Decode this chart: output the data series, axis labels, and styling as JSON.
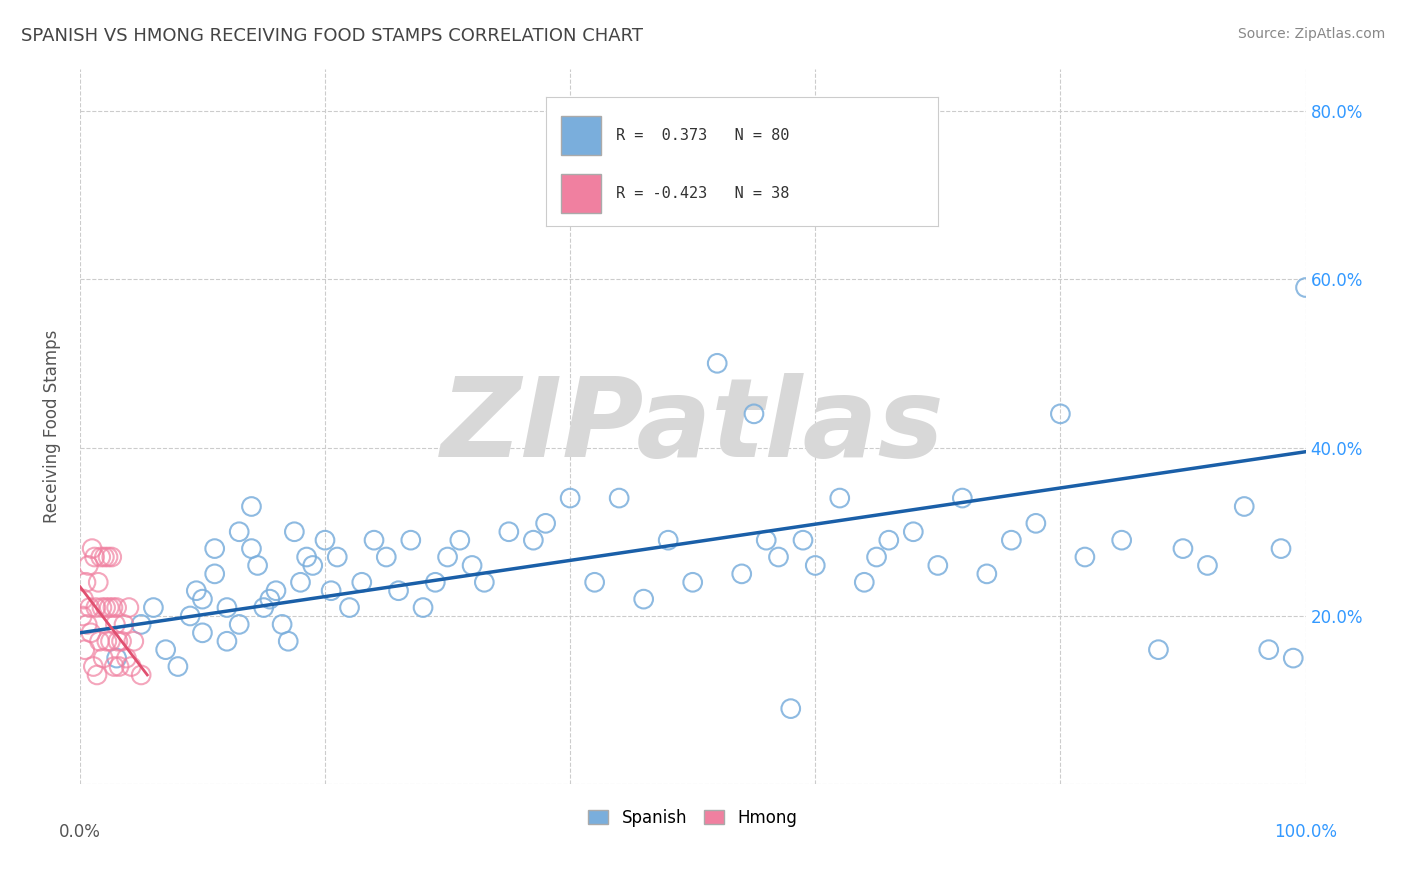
{
  "title": "SPANISH VS HMONG RECEIVING FOOD STAMPS CORRELATION CHART",
  "source": "Source: ZipAtlas.com",
  "ylabel": "Receiving Food Stamps",
  "legend_spanish": "Spanish",
  "legend_hmong": "Hmong",
  "R_spanish": 0.373,
  "N_spanish": 80,
  "R_hmong": -0.423,
  "N_hmong": 38,
  "xlim": [
    0.0,
    1.0
  ],
  "ylim": [
    0.0,
    0.85
  ],
  "xtick_values": [
    0.0,
    0.2,
    0.4,
    0.6,
    0.8,
    1.0
  ],
  "ytick_values": [
    0.0,
    0.2,
    0.4,
    0.6,
    0.8
  ],
  "right_ytick_labels": [
    "80.0%",
    "60.0%",
    "40.0%",
    "20.0%"
  ],
  "right_ytick_values": [
    0.8,
    0.6,
    0.4,
    0.2
  ],
  "color_spanish_fill": "none",
  "color_spanish_edge": "#7aaedc",
  "color_hmong_fill": "none",
  "color_hmong_edge": "#f080a0",
  "trendline_spanish_color": "#1a5fa8",
  "trendline_hmong_color": "#e05070",
  "background_color": "#ffffff",
  "grid_color": "#cccccc",
  "title_color": "#444444",
  "watermark": "ZIPatlas",
  "watermark_color_zip": "#cccccc",
  "watermark_color_atlas": "#aaaaaa",
  "right_axis_color": "#3399ff",
  "spanish_x": [
    0.03,
    0.05,
    0.06,
    0.07,
    0.08,
    0.09,
    0.095,
    0.1,
    0.1,
    0.11,
    0.11,
    0.12,
    0.12,
    0.13,
    0.13,
    0.14,
    0.14,
    0.145,
    0.15,
    0.155,
    0.16,
    0.165,
    0.17,
    0.175,
    0.18,
    0.185,
    0.19,
    0.2,
    0.205,
    0.21,
    0.22,
    0.23,
    0.24,
    0.25,
    0.26,
    0.27,
    0.28,
    0.29,
    0.3,
    0.31,
    0.32,
    0.33,
    0.35,
    0.37,
    0.38,
    0.4,
    0.42,
    0.44,
    0.46,
    0.48,
    0.5,
    0.52,
    0.54,
    0.55,
    0.56,
    0.57,
    0.58,
    0.59,
    0.6,
    0.62,
    0.64,
    0.65,
    0.66,
    0.68,
    0.7,
    0.72,
    0.74,
    0.76,
    0.78,
    0.8,
    0.82,
    0.85,
    0.88,
    0.9,
    0.92,
    0.95,
    0.97,
    0.98,
    0.99,
    1.0
  ],
  "spanish_y": [
    0.15,
    0.19,
    0.21,
    0.16,
    0.14,
    0.2,
    0.23,
    0.22,
    0.18,
    0.25,
    0.28,
    0.17,
    0.21,
    0.3,
    0.19,
    0.28,
    0.33,
    0.26,
    0.21,
    0.22,
    0.23,
    0.19,
    0.17,
    0.3,
    0.24,
    0.27,
    0.26,
    0.29,
    0.23,
    0.27,
    0.21,
    0.24,
    0.29,
    0.27,
    0.23,
    0.29,
    0.21,
    0.24,
    0.27,
    0.29,
    0.26,
    0.24,
    0.3,
    0.29,
    0.31,
    0.34,
    0.24,
    0.34,
    0.22,
    0.29,
    0.24,
    0.5,
    0.25,
    0.44,
    0.29,
    0.27,
    0.09,
    0.29,
    0.26,
    0.34,
    0.24,
    0.27,
    0.29,
    0.3,
    0.26,
    0.34,
    0.25,
    0.29,
    0.31,
    0.44,
    0.27,
    0.29,
    0.16,
    0.28,
    0.26,
    0.33,
    0.16,
    0.28,
    0.15,
    0.59
  ],
  "hmong_x": [
    0.002,
    0.003,
    0.004,
    0.005,
    0.006,
    0.007,
    0.008,
    0.009,
    0.01,
    0.011,
    0.012,
    0.013,
    0.014,
    0.015,
    0.016,
    0.017,
    0.018,
    0.019,
    0.02,
    0.021,
    0.022,
    0.023,
    0.024,
    0.025,
    0.026,
    0.027,
    0.028,
    0.029,
    0.03,
    0.031,
    0.032,
    0.034,
    0.036,
    0.038,
    0.04,
    0.042,
    0.044,
    0.05
  ],
  "hmong_y": [
    0.2,
    0.22,
    0.16,
    0.24,
    0.19,
    0.26,
    0.21,
    0.18,
    0.28,
    0.14,
    0.27,
    0.21,
    0.13,
    0.24,
    0.17,
    0.27,
    0.21,
    0.15,
    0.27,
    0.21,
    0.17,
    0.27,
    0.21,
    0.17,
    0.27,
    0.21,
    0.14,
    0.19,
    0.21,
    0.17,
    0.14,
    0.17,
    0.19,
    0.15,
    0.21,
    0.14,
    0.17,
    0.13
  ],
  "trendline_spanish_x0": 0.0,
  "trendline_spanish_x1": 1.0,
  "trendline_spanish_y0": 0.18,
  "trendline_spanish_y1": 0.395,
  "trendline_hmong_x0": 0.0,
  "trendline_hmong_x1": 0.055,
  "trendline_hmong_y0": 0.235,
  "trendline_hmong_y1": 0.13
}
